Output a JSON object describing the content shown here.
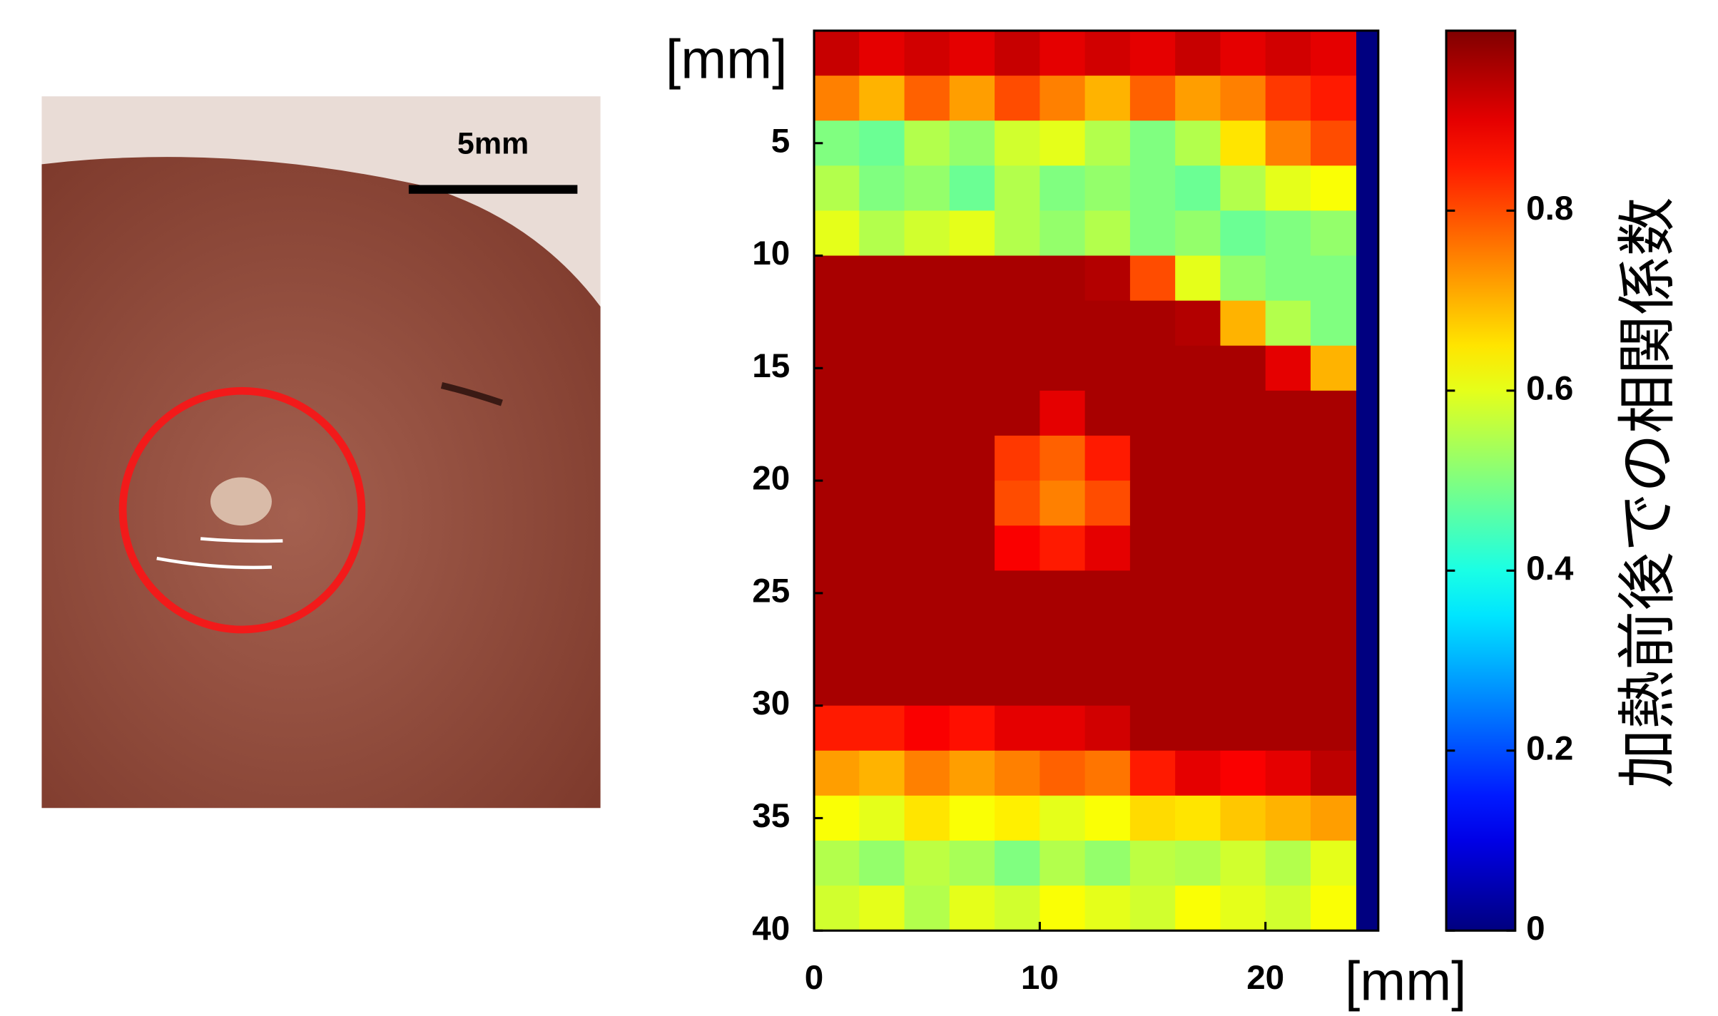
{
  "photo": {
    "scale_label": "5mm"
  },
  "chart_data": {
    "type": "heatmap",
    "x": [
      1,
      3,
      5,
      7,
      9,
      11,
      13,
      15,
      17,
      19,
      21,
      23
    ],
    "y": [
      1,
      3,
      5,
      7,
      9,
      11,
      13,
      15,
      17,
      19,
      21,
      23,
      25,
      27,
      29,
      31,
      33,
      35,
      37,
      39
    ],
    "z": [
      [
        0.93,
        0.9,
        0.92,
        0.9,
        0.93,
        0.9,
        0.92,
        0.9,
        0.93,
        0.9,
        0.92,
        0.9
      ],
      [
        0.75,
        0.7,
        0.78,
        0.72,
        0.8,
        0.75,
        0.7,
        0.78,
        0.72,
        0.75,
        0.82,
        0.85
      ],
      [
        0.5,
        0.48,
        0.55,
        0.52,
        0.58,
        0.6,
        0.55,
        0.5,
        0.55,
        0.65,
        0.75,
        0.8
      ],
      [
        0.55,
        0.5,
        0.52,
        0.48,
        0.55,
        0.5,
        0.52,
        0.5,
        0.48,
        0.55,
        0.6,
        0.62
      ],
      [
        0.6,
        0.55,
        0.58,
        0.6,
        0.55,
        0.52,
        0.55,
        0.5,
        0.52,
        0.48,
        0.5,
        0.52
      ],
      [
        0.96,
        0.96,
        0.96,
        0.96,
        0.96,
        0.96,
        0.95,
        0.8,
        0.6,
        0.52,
        0.5,
        0.5
      ],
      [
        0.96,
        0.96,
        0.96,
        0.96,
        0.96,
        0.96,
        0.96,
        0.96,
        0.95,
        0.7,
        0.55,
        0.5
      ],
      [
        0.96,
        0.96,
        0.96,
        0.96,
        0.96,
        0.96,
        0.96,
        0.96,
        0.96,
        0.96,
        0.9,
        0.7
      ],
      [
        0.96,
        0.96,
        0.96,
        0.96,
        0.96,
        0.9,
        0.96,
        0.96,
        0.96,
        0.96,
        0.96,
        0.96
      ],
      [
        0.96,
        0.96,
        0.96,
        0.96,
        0.82,
        0.78,
        0.85,
        0.96,
        0.96,
        0.96,
        0.96,
        0.96
      ],
      [
        0.96,
        0.96,
        0.96,
        0.96,
        0.8,
        0.75,
        0.8,
        0.96,
        0.96,
        0.96,
        0.96,
        0.96
      ],
      [
        0.96,
        0.96,
        0.96,
        0.96,
        0.88,
        0.85,
        0.9,
        0.96,
        0.96,
        0.96,
        0.96,
        0.96
      ],
      [
        0.96,
        0.96,
        0.96,
        0.96,
        0.96,
        0.96,
        0.96,
        0.96,
        0.96,
        0.96,
        0.96,
        0.96
      ],
      [
        0.96,
        0.96,
        0.96,
        0.96,
        0.96,
        0.96,
        0.96,
        0.96,
        0.96,
        0.96,
        0.96,
        0.96
      ],
      [
        0.96,
        0.96,
        0.96,
        0.96,
        0.96,
        0.96,
        0.96,
        0.96,
        0.96,
        0.96,
        0.96,
        0.96
      ],
      [
        0.85,
        0.85,
        0.88,
        0.86,
        0.9,
        0.9,
        0.92,
        0.96,
        0.96,
        0.96,
        0.96,
        0.96
      ],
      [
        0.72,
        0.7,
        0.75,
        0.72,
        0.75,
        0.78,
        0.76,
        0.85,
        0.9,
        0.88,
        0.9,
        0.94
      ],
      [
        0.62,
        0.6,
        0.65,
        0.62,
        0.64,
        0.6,
        0.62,
        0.66,
        0.65,
        0.68,
        0.7,
        0.72
      ],
      [
        0.55,
        0.52,
        0.56,
        0.54,
        0.5,
        0.55,
        0.52,
        0.56,
        0.55,
        0.58,
        0.55,
        0.6
      ],
      [
        0.58,
        0.6,
        0.55,
        0.6,
        0.58,
        0.62,
        0.6,
        0.58,
        0.62,
        0.6,
        0.58,
        0.62
      ]
    ],
    "colormap": "jet",
    "xlim": [
      0,
      25
    ],
    "ylim": [
      0,
      40
    ],
    "y_inverted": true,
    "xticks": [
      0,
      10,
      20
    ],
    "yticks": [
      5,
      10,
      15,
      20,
      25,
      30,
      35,
      40
    ],
    "xlabel": "[mm]",
    "ylabel": "[mm]",
    "colorbar": {
      "label": "加熱前後での相関係数",
      "clim": [
        0,
        1
      ],
      "ticks": [
        0,
        0.2,
        0.4,
        0.6,
        0.8
      ]
    }
  }
}
